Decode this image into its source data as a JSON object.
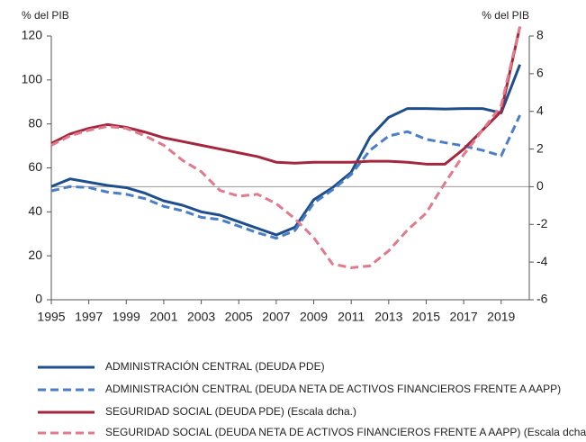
{
  "chart_data": {
    "type": "line",
    "ylabel": "% del PIB",
    "y2label": "% del PIB",
    "x": [
      1995,
      1996,
      1997,
      1998,
      1999,
      2000,
      2001,
      2002,
      2003,
      2004,
      2005,
      2006,
      2007,
      2008,
      2009,
      2010,
      2011,
      2012,
      2013,
      2014,
      2015,
      2016,
      2017,
      2018,
      2019,
      2020
    ],
    "xlim": [
      1995,
      2020.5
    ],
    "xticks": [
      1995,
      1997,
      1999,
      2001,
      2003,
      2005,
      2007,
      2009,
      2011,
      2013,
      2015,
      2017,
      2019
    ],
    "ylim": [
      0,
      120
    ],
    "yticks": [
      0,
      20,
      40,
      60,
      80,
      100,
      120
    ],
    "y2lim": [
      -6,
      8
    ],
    "y2ticks": [
      8,
      6,
      4,
      2,
      0,
      -2,
      -4,
      -6
    ],
    "series": [
      {
        "name": "ADMINISTRACIÓN CENTRAL (DEUDA PDE)",
        "color": "#1f4e8c",
        "dashed": false,
        "values": [
          51.5,
          55,
          53.5,
          52,
          51,
          48.5,
          45,
          43,
          40,
          38.5,
          35.5,
          32.5,
          29.5,
          33,
          45.5,
          51,
          58,
          74,
          83,
          87,
          87,
          86.8,
          87,
          87,
          85,
          107
        ]
      },
      {
        "name": "ADMINISTRACIÓN CENTRAL (DEUDA NETA DE ACTIVOS FINANCIEROS FRENTE A AAPP)",
        "color": "#4a7fc7",
        "dashed": true,
        "values": [
          49.5,
          51.5,
          51,
          49,
          48,
          46,
          42.5,
          40.5,
          37.5,
          36.5,
          33.5,
          30.5,
          28,
          31.5,
          44,
          50,
          57,
          68,
          74.5,
          76.5,
          73,
          71.5,
          70,
          68,
          65.5,
          84
        ]
      },
      {
        "name": "SEGURIDAD SOCIAL (DEUDA PDE) (Escala dcha.)",
        "color": "#a3283f",
        "dashed": false,
        "axis": "y2",
        "values": [
          2.3,
          2.8,
          3.1,
          3.3,
          3.15,
          2.9,
          2.6,
          2.4,
          2.2,
          2.0,
          1.8,
          1.6,
          1.3,
          1.25,
          1.3,
          1.3,
          1.3,
          1.35,
          1.35,
          1.3,
          1.2,
          1.2,
          2.0,
          3.0,
          4.0,
          8.5
        ]
      },
      {
        "name": "SEGURIDAD SOCIAL (DEUDA NETA DE ACTIVOS FINANCIEROS FRENTE A AAPP) (Escala dcha.)",
        "color": "#e07a8c",
        "dashed": true,
        "axis": "y2",
        "values": [
          2.2,
          2.7,
          3.0,
          3.2,
          3.1,
          2.7,
          2.2,
          1.4,
          0.8,
          -0.2,
          -0.5,
          -0.4,
          -0.9,
          -1.7,
          -2.7,
          -4.1,
          -4.3,
          -4.2,
          -3.4,
          -2.3,
          -1.4,
          0.2,
          1.7,
          3.0,
          4.3,
          8.5
        ]
      }
    ]
  }
}
